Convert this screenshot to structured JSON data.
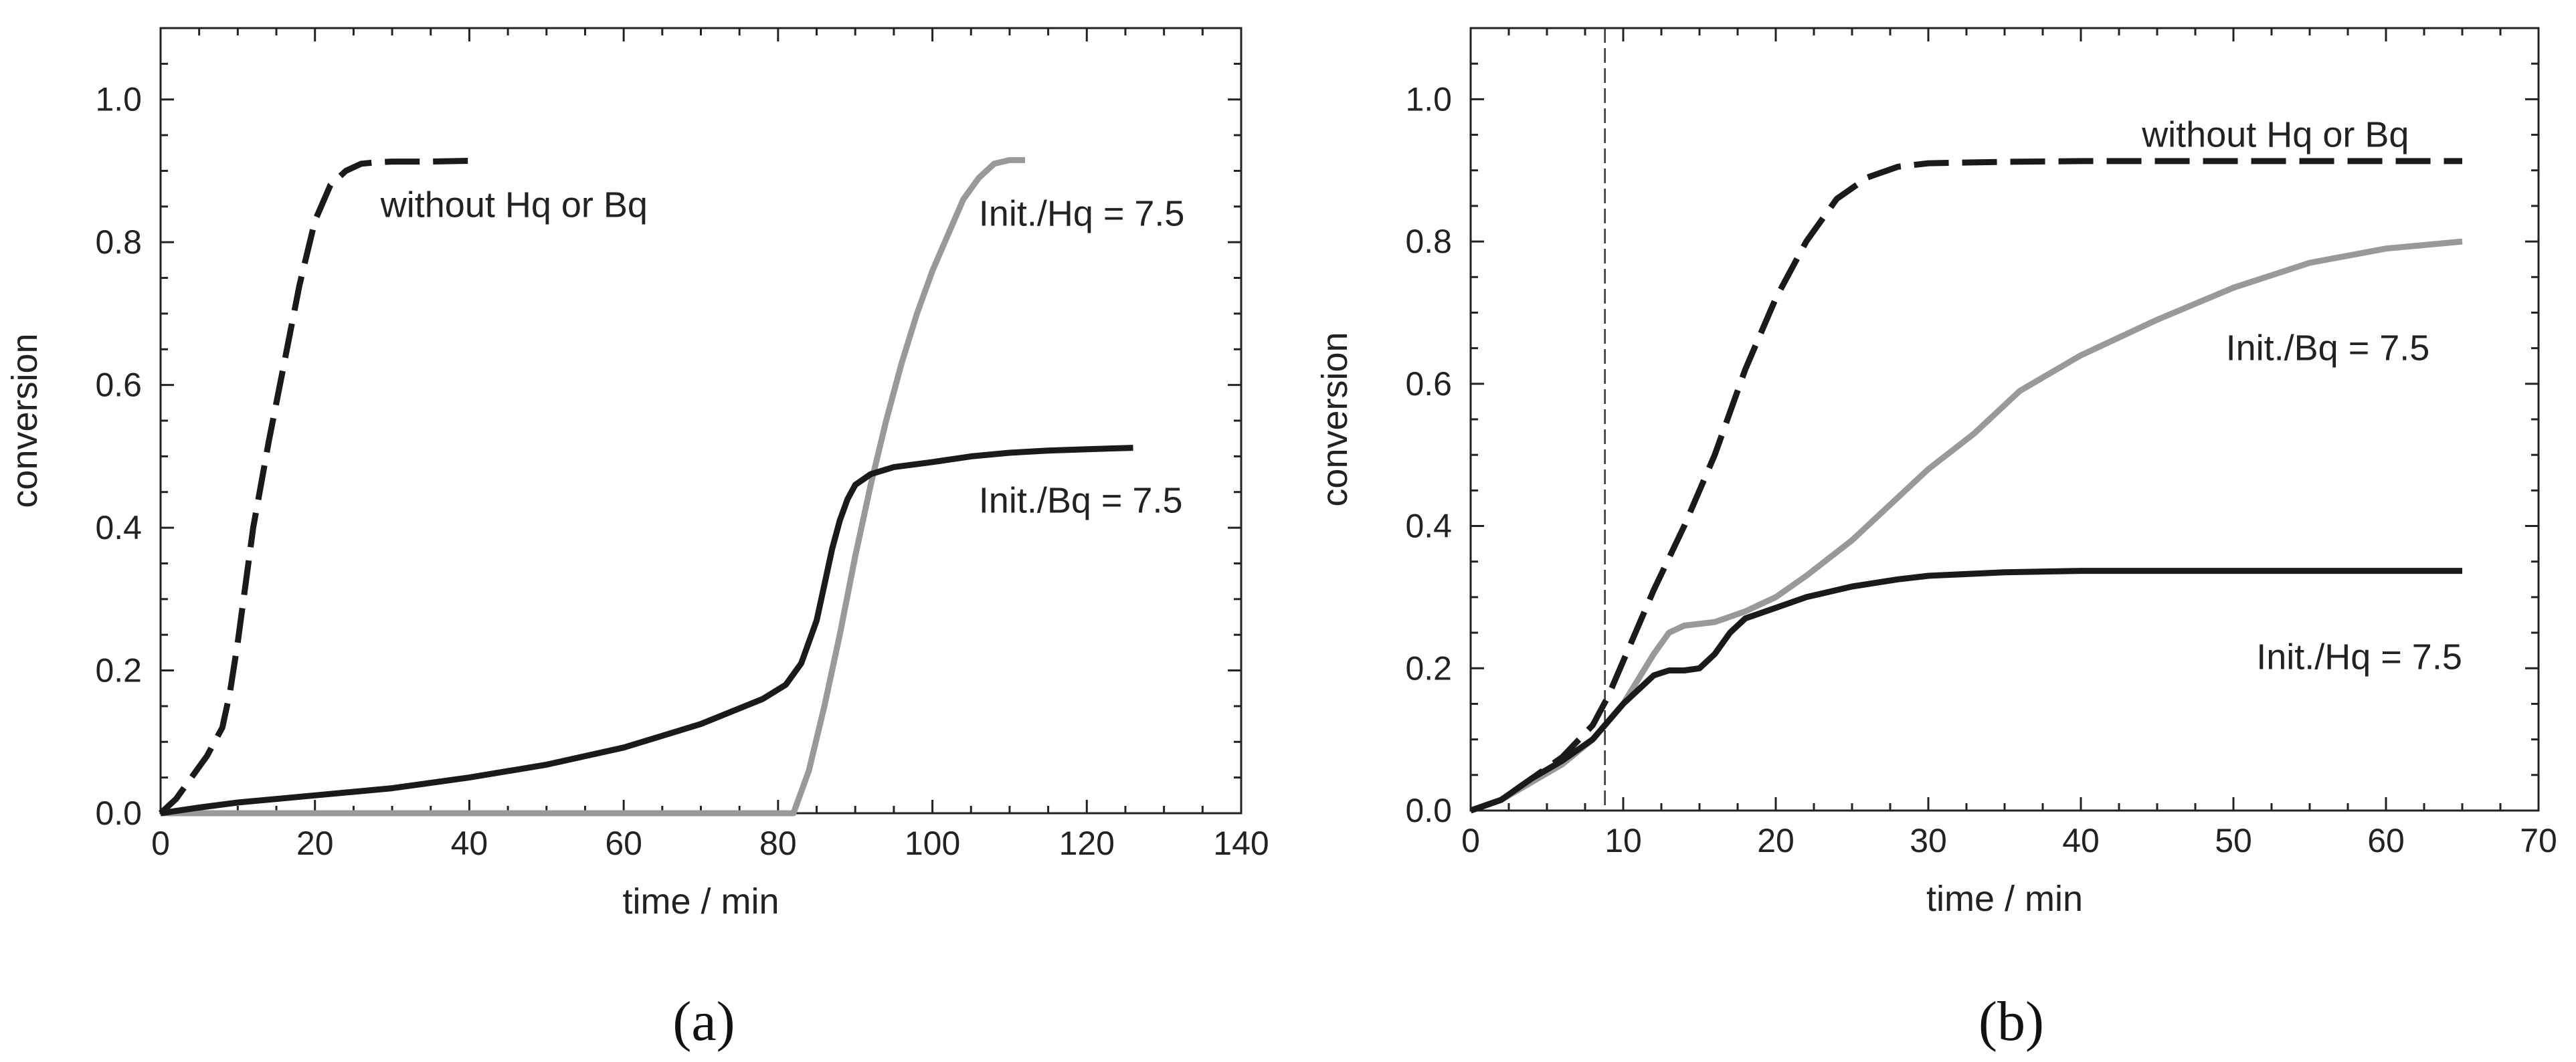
{
  "chart_data": [
    {
      "type": "line",
      "panel_label": "(a)",
      "xlabel": "time / min",
      "ylabel": "conversion",
      "xlim": [
        0,
        140
      ],
      "ylim": [
        0,
        1.1
      ],
      "xticks": [
        0,
        20,
        40,
        60,
        80,
        100,
        120,
        140
      ],
      "xtick_labels": [
        "0",
        "20",
        "40",
        "60",
        "80",
        "100",
        "120",
        "140"
      ],
      "yticks": [
        0,
        0.2,
        0.4,
        0.6,
        0.8,
        1.0
      ],
      "ytick_labels": [
        "0.0",
        "0.2",
        "0.4",
        "0.6",
        "0.8",
        "1.0"
      ],
      "series": [
        {
          "name": "without Hq or Bq",
          "style": "dashed",
          "color": "#1a1a1a",
          "x": [
            0,
            2,
            4,
            6,
            8,
            9,
            10,
            11,
            12,
            13,
            14,
            16,
            18,
            20,
            22,
            24,
            26,
            28,
            30,
            35,
            40
          ],
          "y": [
            0,
            0.02,
            0.05,
            0.08,
            0.12,
            0.17,
            0.24,
            0.32,
            0.4,
            0.46,
            0.52,
            0.63,
            0.74,
            0.83,
            0.88,
            0.9,
            0.91,
            0.912,
            0.913,
            0.913,
            0.914
          ]
        },
        {
          "name": "Init./Hq = 7.5",
          "style": "solid",
          "color": "#999999",
          "x": [
            0,
            20,
            40,
            60,
            80,
            82,
            84,
            86,
            88,
            90,
            92,
            94,
            96,
            98,
            100,
            102,
            104,
            106,
            108,
            110,
            112
          ],
          "y": [
            0,
            0,
            0,
            0,
            0,
            0,
            0.06,
            0.15,
            0.25,
            0.36,
            0.46,
            0.55,
            0.63,
            0.7,
            0.76,
            0.81,
            0.86,
            0.89,
            0.91,
            0.915,
            0.915
          ]
        },
        {
          "name": "Init./Bq = 7.5",
          "style": "solid",
          "color": "#1a1a1a",
          "x": [
            0,
            5,
            10,
            20,
            30,
            40,
            50,
            60,
            70,
            78,
            81,
            83,
            85,
            86,
            87,
            88,
            89,
            90,
            92,
            95,
            100,
            105,
            110,
            115,
            120,
            126
          ],
          "y": [
            0,
            0.008,
            0.015,
            0.025,
            0.035,
            0.05,
            0.068,
            0.092,
            0.125,
            0.16,
            0.18,
            0.21,
            0.27,
            0.32,
            0.37,
            0.41,
            0.44,
            0.46,
            0.475,
            0.485,
            0.492,
            0.5,
            0.505,
            0.508,
            0.51,
            0.512
          ]
        }
      ],
      "annotations": [
        {
          "text": "without Hq or Bq",
          "x": 28.5,
          "y": 0.852
        },
        {
          "text": "Init./Hq = 7.5",
          "x": 106,
          "y": 0.84
        },
        {
          "text": "Init./Bq = 7.5",
          "x": 106,
          "y": 0.438
        }
      ]
    },
    {
      "type": "line",
      "panel_label": "(b)",
      "xlabel": "time / min",
      "ylabel": "conversion",
      "xlim": [
        0,
        70
      ],
      "ylim": [
        0,
        1.1
      ],
      "xticks": [
        0,
        10,
        20,
        30,
        40,
        50,
        60,
        70
      ],
      "xtick_labels": [
        "0",
        "10",
        "20",
        "30",
        "40",
        "50",
        "60",
        "70"
      ],
      "yticks": [
        0,
        0.2,
        0.4,
        0.6,
        0.8,
        1.0
      ],
      "ytick_labels": [
        "0.0",
        "0.2",
        "0.4",
        "0.6",
        "0.8",
        "1.0"
      ],
      "vline_x": 8.8,
      "series": [
        {
          "name": "without Hq or Bq",
          "style": "dashed",
          "color": "#1a1a1a",
          "x": [
            0,
            2,
            4,
            6,
            8,
            9,
            10,
            11,
            12,
            14,
            16,
            18,
            20,
            22,
            24,
            26,
            28,
            30,
            35,
            40,
            50,
            60,
            65
          ],
          "y": [
            0,
            0.015,
            0.045,
            0.075,
            0.12,
            0.16,
            0.21,
            0.26,
            0.31,
            0.4,
            0.5,
            0.62,
            0.72,
            0.8,
            0.86,
            0.89,
            0.905,
            0.91,
            0.912,
            0.913,
            0.913,
            0.913,
            0.913
          ]
        },
        {
          "name": "Init./Bq = 7.5",
          "style": "solid",
          "color": "#999999",
          "x": [
            0,
            2,
            4,
            6,
            8,
            10,
            12,
            13,
            14,
            16,
            18,
            20,
            22,
            25,
            28,
            30,
            33,
            36,
            40,
            45,
            50,
            55,
            60,
            65
          ],
          "y": [
            0,
            0.015,
            0.04,
            0.065,
            0.1,
            0.15,
            0.22,
            0.25,
            0.26,
            0.265,
            0.28,
            0.3,
            0.33,
            0.38,
            0.44,
            0.48,
            0.53,
            0.59,
            0.64,
            0.69,
            0.735,
            0.77,
            0.79,
            0.8
          ]
        },
        {
          "name": "Init./Hq = 7.5",
          "style": "solid",
          "color": "#1a1a1a",
          "x": [
            0,
            2,
            4,
            6,
            8,
            10,
            12,
            13,
            14,
            15,
            16,
            17,
            18,
            20,
            22,
            25,
            28,
            30,
            35,
            40,
            50,
            60,
            65
          ],
          "y": [
            0,
            0.015,
            0.045,
            0.07,
            0.1,
            0.15,
            0.19,
            0.197,
            0.197,
            0.2,
            0.22,
            0.25,
            0.27,
            0.285,
            0.3,
            0.315,
            0.325,
            0.33,
            0.335,
            0.337,
            0.337,
            0.337,
            0.337
          ]
        }
      ],
      "annotations": [
        {
          "text": "without Hq or Bq",
          "x": 44,
          "y": 0.95
        },
        {
          "text": "Init./Bq = 7.5",
          "x": 49.5,
          "y": 0.65
        },
        {
          "text": "Init./Hq = 7.5",
          "x": 51.5,
          "y": 0.216
        }
      ]
    }
  ]
}
